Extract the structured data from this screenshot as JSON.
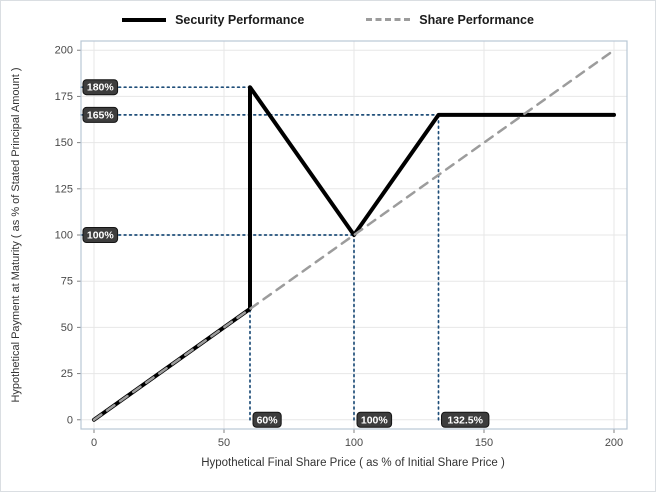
{
  "chart_data": {
    "type": "line",
    "title": "",
    "xlabel": "Hypothetical Final Share Price ( as % of Initial Share Price )",
    "ylabel": "Hypothetical Payment at Maturity ( as % of Stated Principal Amount )",
    "xlim": [
      -5,
      205
    ],
    "ylim": [
      -5,
      205
    ],
    "xticks": [
      0,
      50,
      100,
      150,
      200
    ],
    "yticks": [
      0,
      25,
      50,
      75,
      100,
      125,
      150,
      175,
      200
    ],
    "grid": true,
    "legend_position": "top",
    "series": [
      {
        "name": "Security Performance",
        "color": "#000000",
        "width": 4,
        "dash": "",
        "points": [
          [
            0,
            0
          ],
          [
            60,
            60
          ],
          [
            60,
            180
          ],
          [
            100,
            100
          ],
          [
            132.5,
            165
          ],
          [
            200,
            165
          ]
        ]
      },
      {
        "name": "Share Performance",
        "color": "#9c9c9c",
        "width": 2.5,
        "dash": "9 7",
        "points": [
          [
            0,
            0
          ],
          [
            200,
            200
          ]
        ]
      }
    ],
    "annotations": {
      "color": "#1f4e79",
      "badge_bg": "#3d3d3d",
      "badge_border": "#141414",
      "badge_text": "#ffffff",
      "horizontal": [
        {
          "y": 180,
          "x_end": 60,
          "label": "180%"
        },
        {
          "y": 165,
          "x_end": 132.5,
          "label": "165%"
        },
        {
          "y": 100,
          "x_end": 100,
          "label": "100%"
        }
      ],
      "vertical": [
        {
          "x": 60,
          "y_end": 180,
          "label": "60%"
        },
        {
          "x": 100,
          "y_end": 100,
          "label": "100%"
        },
        {
          "x": 132.5,
          "y_end": 165,
          "label": "132.5%"
        }
      ]
    },
    "colors": {
      "grid": "#e7e7e7",
      "frame": "#b9c7d6",
      "tick": "#808080",
      "tick_label": "#4a4a4a",
      "axis_label": "#333333"
    }
  }
}
